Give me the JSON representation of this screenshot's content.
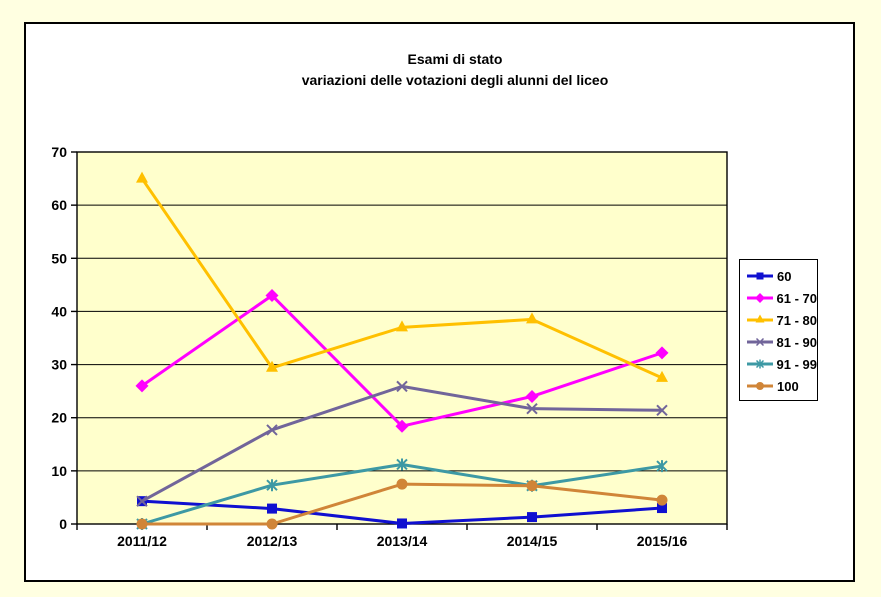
{
  "page": {
    "background_color": "#FFFFE1",
    "frame_color": "#FFFFFF"
  },
  "chart_data": {
    "type": "line",
    "title": "Esami di stato",
    "subtitle": "variazioni delle votazioni degli alunni del liceo",
    "categories": [
      "2011/12",
      "2012/13",
      "2013/14",
      "2014/15",
      "2015/16"
    ],
    "series": [
      {
        "name": "60",
        "color": "#1010D0",
        "marker": "square",
        "values": [
          4.3,
          2.9,
          0.1,
          1.3,
          3.0
        ]
      },
      {
        "name": "61 - 70",
        "color": "#FF00FF",
        "marker": "diamond",
        "values": [
          26.0,
          43.0,
          18.4,
          24.0,
          32.2
        ]
      },
      {
        "name": "71 - 80",
        "color": "#FFC000",
        "marker": "triangle",
        "values": [
          65.0,
          29.4,
          37.0,
          38.5,
          27.5
        ]
      },
      {
        "name": "81 - 90",
        "color": "#71659A",
        "marker": "x",
        "values": [
          4.3,
          17.7,
          25.9,
          21.7,
          21.4
        ]
      },
      {
        "name": "91 - 99",
        "color": "#3D99A4",
        "marker": "star",
        "values": [
          0.0,
          7.3,
          11.2,
          7.2,
          10.9
        ]
      },
      {
        "name": "100",
        "color": "#D08538",
        "marker": "circle",
        "values": [
          0.0,
          0.0,
          7.5,
          7.2,
          4.5
        ]
      }
    ],
    "ylim": [
      0,
      70
    ],
    "yticks": [
      0,
      10,
      20,
      30,
      40,
      50,
      60,
      70
    ],
    "grid": true,
    "legend_position": "right",
    "plot_bg": "#FFFFCC",
    "axis_color": "#000000",
    "xlabel": "",
    "ylabel": ""
  }
}
